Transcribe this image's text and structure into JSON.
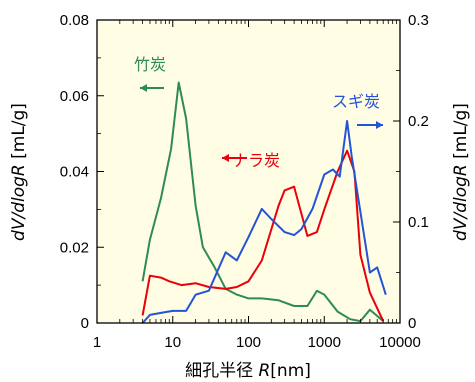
{
  "chart_data": {
    "type": "line",
    "xlabel": "細孔半径",
    "xlabel_var": "R",
    "xlabel_unit": "[nm]",
    "ylabel_left": "dV/dlogR",
    "ylabel_left_unit": "[mL/g]",
    "ylabel_right": "dV/dlogR",
    "ylabel_right_unit": "[mL/g]",
    "x_scale": "log",
    "xlim": [
      1,
      10000
    ],
    "ylim_left": [
      0,
      0.08
    ],
    "ylim_right": [
      0,
      0.3
    ],
    "x_ticks": [
      {
        "value": 1,
        "label": "1"
      },
      {
        "value": 10,
        "label": "10"
      },
      {
        "value": 100,
        "label": "100"
      },
      {
        "value": 1000,
        "label": "1000"
      },
      {
        "value": 10000,
        "label": "10000"
      }
    ],
    "y_ticks_left": [
      {
        "value": 0,
        "label": "0"
      },
      {
        "value": 0.02,
        "label": "0.02"
      },
      {
        "value": 0.04,
        "label": "0.04"
      },
      {
        "value": 0.06,
        "label": "0.06"
      },
      {
        "value": 0.08,
        "label": "0.08"
      }
    ],
    "y_ticks_right": [
      {
        "value": 0,
        "label": "0"
      },
      {
        "value": 0.1,
        "label": "0.1"
      },
      {
        "value": 0.2,
        "label": "0.2"
      },
      {
        "value": 0.3,
        "label": "0.3"
      }
    ],
    "plot_background": "#fffde4",
    "series": [
      {
        "name": "竹炭",
        "color": "#2e8b57",
        "axis": "left",
        "arrow": "left",
        "x": [
          4,
          5,
          7,
          9.5,
          12,
          15,
          20,
          25,
          35,
          50,
          70,
          100,
          150,
          250,
          400,
          600,
          800,
          1000,
          1500,
          2200,
          3000,
          4000,
          6000
        ],
        "y": [
          0.011,
          0.022,
          0.033,
          0.046,
          0.0635,
          0.054,
          0.031,
          0.02,
          0.015,
          0.009,
          0.0075,
          0.0065,
          0.0065,
          0.006,
          0.0045,
          0.0045,
          0.0085,
          0.0075,
          0.003,
          0.001,
          0.0005,
          0.0035,
          0.0005
        ]
      },
      {
        "name": "ナラ炭",
        "color": "#e8000b",
        "axis": "left",
        "arrow": "left",
        "x": [
          4,
          5,
          7,
          9,
          13,
          20,
          30,
          50,
          70,
          100,
          150,
          250,
          300,
          400,
          600,
          800,
          1000,
          1500,
          2000,
          2500,
          3000,
          4000,
          6000
        ],
        "y": [
          0.002,
          0.0125,
          0.012,
          0.011,
          0.01,
          0.0105,
          0.0095,
          0.009,
          0.0095,
          0.011,
          0.0165,
          0.031,
          0.035,
          0.036,
          0.023,
          0.024,
          0.03,
          0.04,
          0.0455,
          0.04,
          0.018,
          0.008,
          0.0005
        ]
      },
      {
        "name": "スギ炭",
        "color": "#2453d6",
        "axis": "right",
        "arrow": "right",
        "x": [
          4,
          5,
          7,
          10,
          15,
          20,
          30,
          50,
          70,
          100,
          150,
          200,
          300,
          400,
          500,
          700,
          1000,
          1300,
          1600,
          2000,
          2300,
          3000,
          4000,
          5000,
          6500
        ],
        "y": [
          0.0,
          0.008,
          0.01,
          0.012,
          0.012,
          0.028,
          0.032,
          0.07,
          0.062,
          0.085,
          0.113,
          0.103,
          0.09,
          0.087,
          0.093,
          0.113,
          0.147,
          0.152,
          0.145,
          0.2,
          0.165,
          0.11,
          0.05,
          0.055,
          0.028
        ]
      }
    ]
  }
}
